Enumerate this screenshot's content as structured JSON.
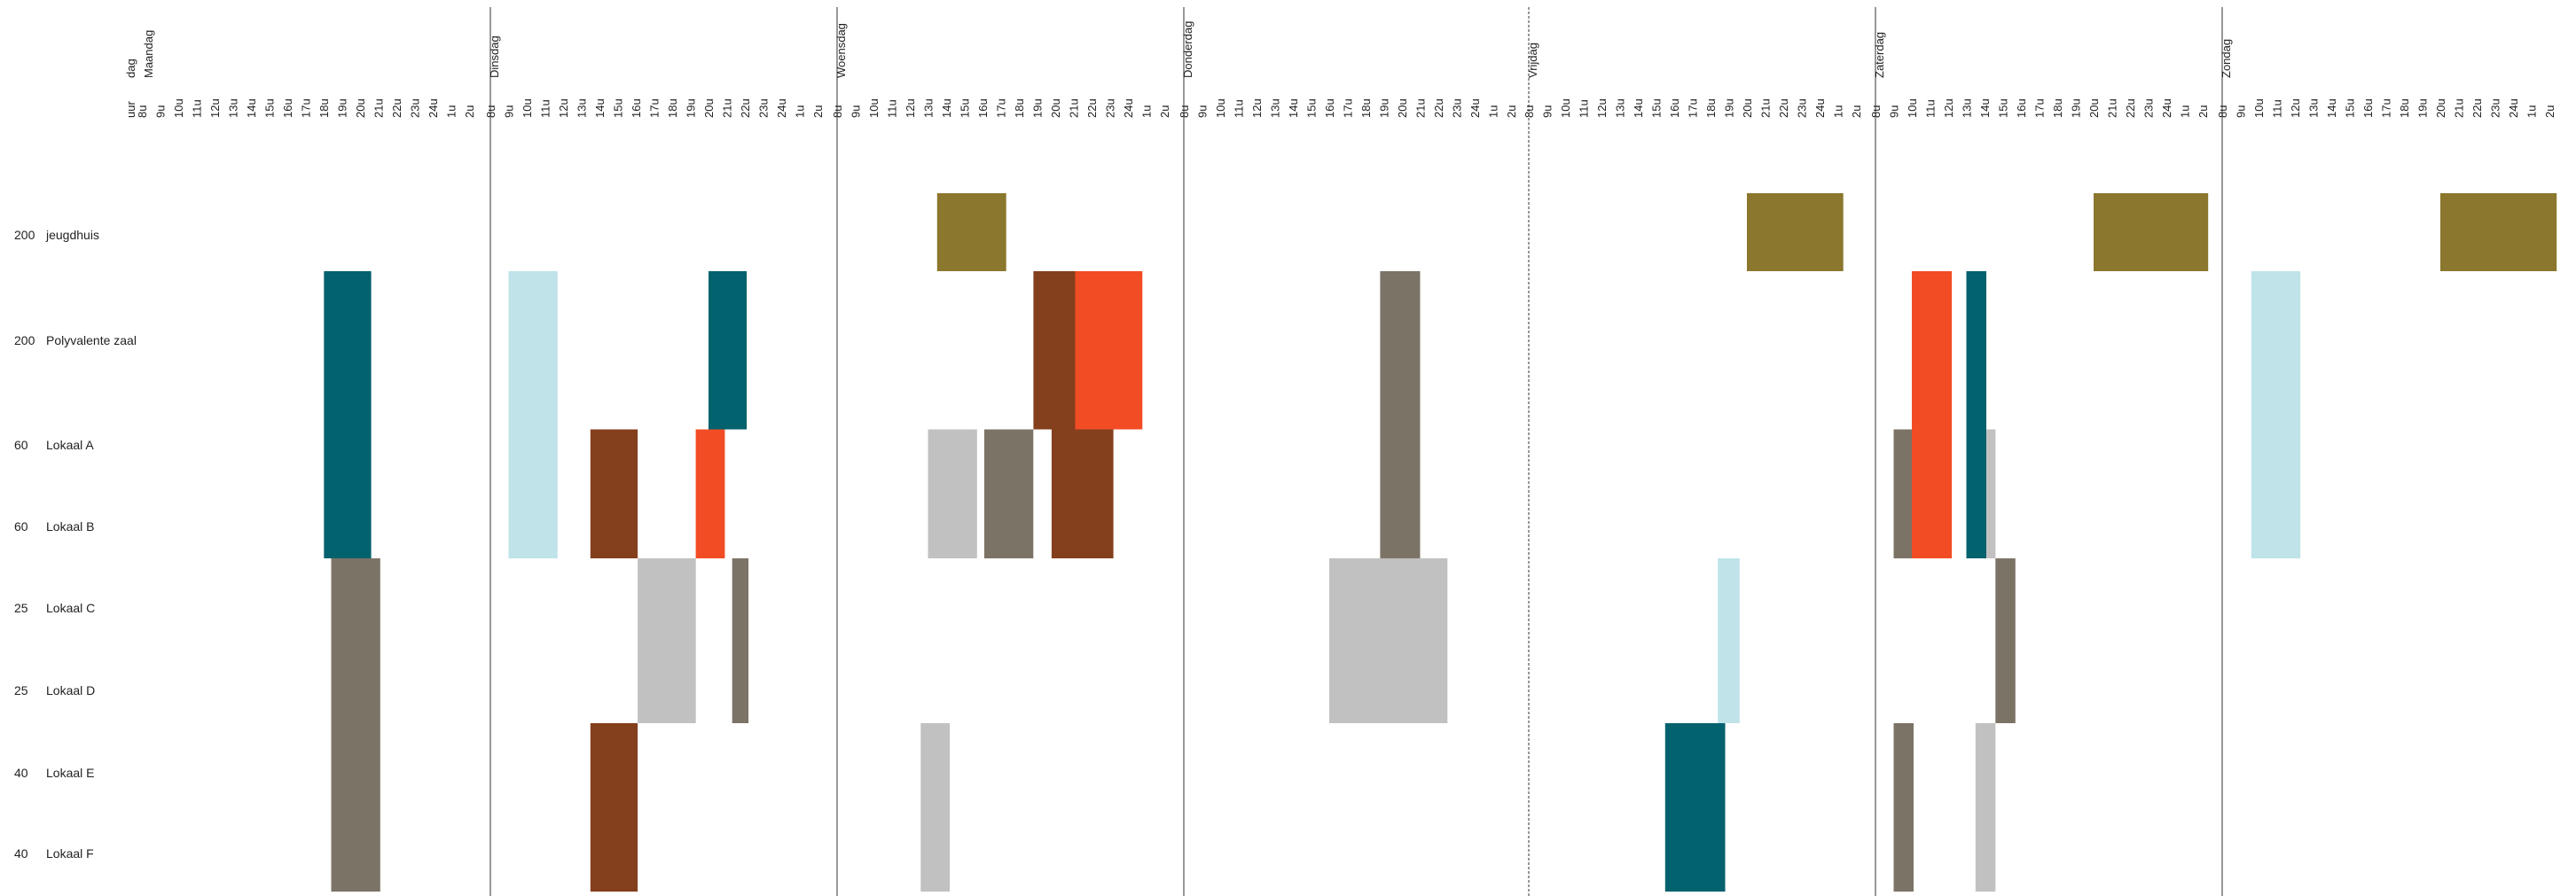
{
  "chart_data": {
    "type": "gantt",
    "header": {
      "hour_label": "uur",
      "day_label": "dag"
    },
    "days": [
      "Maandag",
      "Dinsdag",
      "Woensdag",
      "Donderdag",
      "Vrijdag",
      "Zaterdag",
      "Zondag"
    ],
    "hours": [
      "8u",
      "9u",
      "10u",
      "11u",
      "12u",
      "13u",
      "14u",
      "15u",
      "16u",
      "17u",
      "18u",
      "19u",
      "20u",
      "21u",
      "22u",
      "23u",
      "24u",
      "1u",
      "2u"
    ],
    "rooms": [
      {
        "capacity": "200",
        "name": "jeugdhuis"
      },
      {
        "capacity": "200",
        "name": "Polyvalente zaal"
      },
      {
        "capacity": "60",
        "name": "Lokaal A"
      },
      {
        "capacity": "60",
        "name": "Lokaal B"
      },
      {
        "capacity": "25",
        "name": "Lokaal C"
      },
      {
        "capacity": "25",
        "name": "Lokaal D"
      },
      {
        "capacity": "40",
        "name": "Lokaal E"
      },
      {
        "capacity": "40",
        "name": "Lokaal F"
      }
    ],
    "colors": {
      "olive": "#8b772d",
      "teal": "#02626d",
      "lightblue": "#bfe3e9",
      "brown": "#843f1d",
      "orange": "#f24c25",
      "gray": "#7c7367",
      "lightgray": "#c1c1c1"
    },
    "bookings": [
      {
        "day": 0,
        "start": 18.6,
        "end": 21.2,
        "row_start": 1,
        "row_end": 4,
        "color": "teal"
      },
      {
        "day": 0,
        "start": 19.0,
        "end": 21.7,
        "row_start": 4,
        "row_end": 8,
        "color": "gray"
      },
      {
        "day": 1,
        "start": 9.0,
        "end": 11.7,
        "row_start": 1,
        "row_end": 4,
        "color": "lightblue"
      },
      {
        "day": 1,
        "start": 20.0,
        "end": 22.1,
        "row_start": 1,
        "row_end": 2.5,
        "color": "teal"
      },
      {
        "day": 1,
        "start": 13.5,
        "end": 16.1,
        "row_start": 2.5,
        "row_end": 4,
        "color": "brown"
      },
      {
        "day": 1,
        "start": 19.3,
        "end": 20.9,
        "row_start": 2.5,
        "row_end": 4,
        "color": "orange"
      },
      {
        "day": 1,
        "start": 16.1,
        "end": 19.3,
        "row_start": 4,
        "row_end": 6,
        "color": "lightgray"
      },
      {
        "day": 1,
        "start": 21.3,
        "end": 22.2,
        "row_start": 4,
        "row_end": 6,
        "color": "gray"
      },
      {
        "day": 1,
        "start": 13.5,
        "end": 16.1,
        "row_start": 6,
        "row_end": 8,
        "color": "brown"
      },
      {
        "day": 2,
        "start": 13.5,
        "end": 17.3,
        "row_start": 0,
        "row_end": 1,
        "color": "olive"
      },
      {
        "day": 2,
        "start": 18.8,
        "end": 21.1,
        "row_start": 1,
        "row_end": 2.5,
        "color": "brown"
      },
      {
        "day": 2,
        "start": 21.1,
        "end": 24.8,
        "row_start": 1,
        "row_end": 2.5,
        "color": "orange"
      },
      {
        "day": 2,
        "start": 13.0,
        "end": 15.7,
        "row_start": 2.5,
        "row_end": 4,
        "color": "lightgray"
      },
      {
        "day": 2,
        "start": 16.1,
        "end": 18.8,
        "row_start": 2.5,
        "row_end": 4,
        "color": "gray"
      },
      {
        "day": 2,
        "start": 19.8,
        "end": 23.2,
        "row_start": 2.5,
        "row_end": 4,
        "color": "brown"
      },
      {
        "day": 2,
        "start": 12.6,
        "end": 14.2,
        "row_start": 6,
        "row_end": 8,
        "color": "lightgray"
      },
      {
        "day": 3,
        "start": 18.8,
        "end": 21.0,
        "row_start": 1,
        "row_end": 4,
        "color": "gray"
      },
      {
        "day": 3,
        "start": 16.0,
        "end": 22.5,
        "row_start": 4,
        "row_end": 6,
        "color": "lightgray"
      },
      {
        "day": 4,
        "start": 20.0,
        "end": 25.3,
        "row_start": 0,
        "row_end": 1,
        "color": "olive"
      },
      {
        "day": 4,
        "start": 18.4,
        "end": 19.6,
        "row_start": 4,
        "row_end": 6,
        "color": "lightblue"
      },
      {
        "day": 4,
        "start": 15.5,
        "end": 18.8,
        "row_start": 6,
        "row_end": 8,
        "color": "teal"
      },
      {
        "day": 5,
        "start": 20.0,
        "end": 26.3,
        "row_start": 0,
        "row_end": 1,
        "color": "olive"
      },
      {
        "day": 5,
        "start": 10.0,
        "end": 12.2,
        "row_start": 1,
        "row_end": 4,
        "color": "orange"
      },
      {
        "day": 5,
        "start": 13.0,
        "end": 14.1,
        "row_start": 1,
        "row_end": 4,
        "color": "teal"
      },
      {
        "day": 5,
        "start": 9.0,
        "end": 10.0,
        "row_start": 2.5,
        "row_end": 4,
        "color": "gray"
      },
      {
        "day": 5,
        "start": 14.1,
        "end": 14.6,
        "row_start": 2.5,
        "row_end": 4,
        "color": "lightgray"
      },
      {
        "day": 5,
        "start": 14.6,
        "end": 15.7,
        "row_start": 4,
        "row_end": 6,
        "color": "gray"
      },
      {
        "day": 5,
        "start": 9.0,
        "end": 10.1,
        "row_start": 6,
        "row_end": 8,
        "color": "gray"
      },
      {
        "day": 5,
        "start": 13.5,
        "end": 14.6,
        "row_start": 6,
        "row_end": 8,
        "color": "lightgray"
      },
      {
        "day": 6,
        "start": 20.0,
        "end": 26.4,
        "row_start": 0,
        "row_end": 1,
        "color": "olive"
      },
      {
        "day": 6,
        "start": 9.6,
        "end": 12.3,
        "row_start": 1,
        "row_end": 4,
        "color": "lightblue"
      }
    ]
  }
}
